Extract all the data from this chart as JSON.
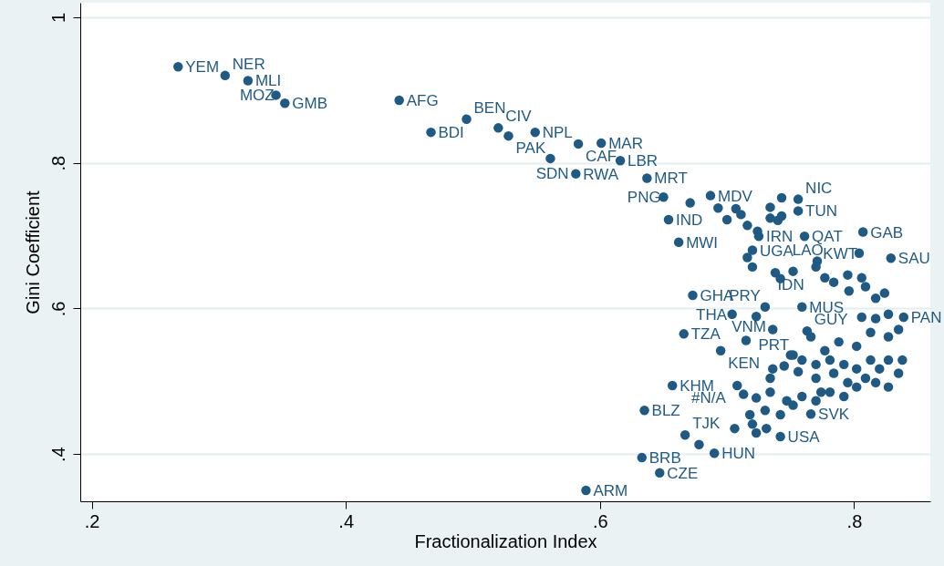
{
  "chart_data": {
    "type": "scatter",
    "xlabel": "Fractionalization Index",
    "ylabel": "Gini Coefficient",
    "xlim": [
      0.191,
      0.86
    ],
    "ylim": [
      0.335,
      1.02
    ],
    "xticks": [
      {
        "value": 0.2,
        "label": ".2"
      },
      {
        "value": 0.4,
        "label": ".4"
      },
      {
        "value": 0.6,
        "label": ".6"
      },
      {
        "value": 0.8,
        "label": ".8"
      }
    ],
    "yticks": [
      {
        "value": 0.4,
        "label": ".4"
      },
      {
        "value": 0.6,
        "label": ".6"
      },
      {
        "value": 0.8,
        "label": ".8"
      },
      1
    ],
    "grid": "y",
    "marker": "circle",
    "series": [
      {
        "color": "#1f5a85",
        "x": [
          0.268,
          0.305,
          0.323,
          0.345,
          0.352,
          0.442,
          0.467,
          0.495,
          0.52,
          0.528,
          0.549,
          0.583,
          0.601,
          0.561,
          0.616,
          0.581,
          0.637,
          0.65,
          0.687,
          0.654,
          0.662,
          0.673,
          0.666,
          0.695,
          0.657,
          0.635,
          0.667,
          0.678,
          0.69,
          0.633,
          0.647,
          0.589,
          0.742,
          0.766,
          0.807,
          0.804,
          0.829,
          0.761,
          0.756,
          0.743,
          0.756,
          0.74,
          0.725,
          0.72,
          0.771,
          0.759,
          0.73,
          0.704,
          0.723,
          0.736,
          0.763,
          0.715,
          0.839,
          0.708,
          0.671,
          0.693,
          0.707,
          0.711,
          0.7,
          0.716,
          0.734,
          0.734,
          0.724,
          0.743,
          0.716,
          0.72,
          0.738,
          0.742,
          0.752,
          0.77,
          0.777,
          0.784,
          0.795,
          0.806,
          0.796,
          0.809,
          0.817,
          0.824,
          0.806,
          0.817,
          0.827,
          0.813,
          0.827,
          0.835,
          0.802,
          0.788,
          0.777,
          0.766,
          0.752,
          0.759,
          0.77,
          0.781,
          0.792,
          0.802,
          0.813,
          0.82,
          0.827,
          0.835,
          0.809,
          0.795,
          0.784,
          0.77,
          0.756,
          0.745,
          0.75,
          0.736,
          0.734,
          0.774,
          0.759,
          0.747,
          0.734,
          0.723,
          0.713,
          0.718,
          0.73,
          0.742,
          0.752,
          0.72,
          0.731,
          0.723,
          0.706,
          0.77,
          0.781,
          0.792,
          0.802,
          0.817,
          0.827,
          0.838
        ],
        "values": [
          0.932,
          0.92,
          0.913,
          0.893,
          0.882,
          0.886,
          0.842,
          0.86,
          0.848,
          0.837,
          0.842,
          0.826,
          0.827,
          0.806,
          0.803,
          0.785,
          0.779,
          0.753,
          0.755,
          0.722,
          0.691,
          0.618,
          0.565,
          0.542,
          0.494,
          0.46,
          0.426,
          0.413,
          0.401,
          0.395,
          0.374,
          0.35,
          0.424,
          0.455,
          0.705,
          0.676,
          0.669,
          0.699,
          0.734,
          0.752,
          0.75,
          0.721,
          0.699,
          0.68,
          0.665,
          0.602,
          0.602,
          0.592,
          0.589,
          0.571,
          0.569,
          0.556,
          0.588,
          0.494,
          0.745,
          0.738,
          0.737,
          0.729,
          0.722,
          0.714,
          0.724,
          0.739,
          0.706,
          0.727,
          0.67,
          0.657,
          0.649,
          0.641,
          0.651,
          0.657,
          0.642,
          0.636,
          0.646,
          0.642,
          0.624,
          0.63,
          0.614,
          0.621,
          0.588,
          0.586,
          0.592,
          0.567,
          0.561,
          0.571,
          0.548,
          0.554,
          0.542,
          0.561,
          0.536,
          0.529,
          0.523,
          0.529,
          0.523,
          0.517,
          0.529,
          0.517,
          0.529,
          0.511,
          0.504,
          0.498,
          0.511,
          0.504,
          0.513,
          0.521,
          0.536,
          0.517,
          0.504,
          0.485,
          0.479,
          0.473,
          0.485,
          0.477,
          0.482,
          0.454,
          0.46,
          0.454,
          0.467,
          0.441,
          0.435,
          0.429,
          0.435,
          0.473,
          0.485,
          0.479,
          0.492,
          0.498,
          0.492,
          0.529
        ],
        "value_labels": [
          "YEM",
          "NER",
          "MLI",
          "MOZ",
          "GMB",
          "AFG",
          "BDI",
          "BEN",
          "CIV",
          "PAK",
          "NPL",
          "CAF",
          "MAR",
          "SDN",
          "LBR",
          "RWA",
          "MRT",
          "PNG",
          "MDV",
          "IND",
          "MWI",
          "GHA",
          "TZA",
          "KEN",
          "KHM",
          "BLZ",
          "TJK",
          null,
          "HUN",
          "BRB",
          "CZE",
          "ARM",
          "USA",
          "SVK",
          "GAB",
          "KWT",
          "SAU",
          "QAT",
          "TUN",
          null,
          "NIC",
          "LAO",
          "IRN",
          "UGA",
          "IDN",
          "MUS",
          "PRY",
          "THA",
          null,
          "PRT",
          "GUY",
          "VNM",
          "PAN",
          "#N/A",
          null,
          null,
          null,
          null,
          null,
          null,
          null,
          null,
          null,
          null,
          null,
          null,
          null,
          null,
          null,
          null,
          null,
          null,
          null,
          null,
          null,
          null,
          null,
          null,
          null,
          null,
          null,
          null,
          null,
          null,
          null,
          null,
          null,
          null,
          null,
          null,
          null,
          null,
          null,
          null,
          null,
          null,
          null,
          null,
          null,
          null,
          null,
          null,
          null,
          null,
          null,
          null,
          null,
          null,
          null,
          null,
          null,
          null,
          null,
          null,
          null,
          null,
          null,
          null,
          null,
          null,
          null,
          null,
          null,
          null,
          null,
          null,
          null,
          null
        ]
      }
    ]
  }
}
